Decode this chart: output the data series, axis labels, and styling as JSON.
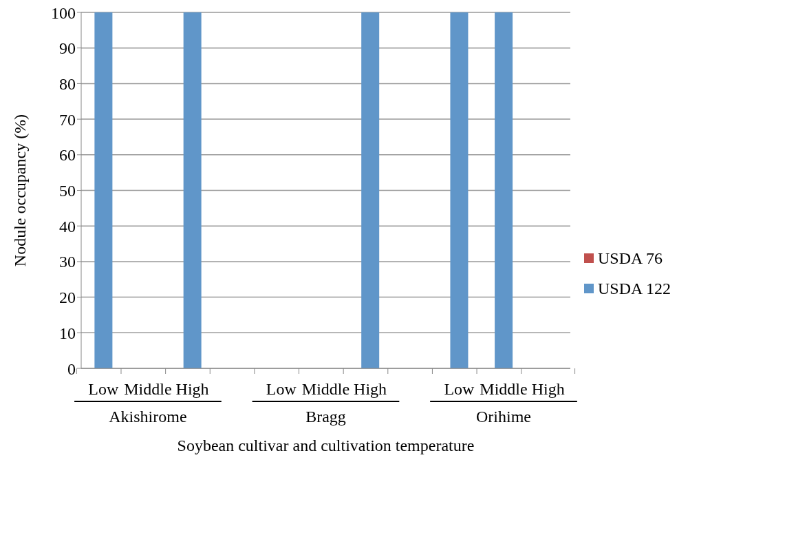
{
  "chart_data": {
    "type": "bar",
    "stacked": true,
    "xlabel": "Soybean cultivar and cultivation temperature",
    "ylabel": "Nodule occupancy (%)",
    "categories": [
      "Low",
      "Middle",
      "High",
      null,
      "Low",
      "Middle",
      "High",
      null,
      "Low",
      "Middle",
      "High"
    ],
    "annotations": [
      "Akishirome",
      "Bragg",
      "Orihime"
    ],
    "series": [
      {
        "name": "USDA 76",
        "color": "#c0504d",
        "values": [
          0,
          0,
          0,
          null,
          0,
          0,
          0,
          null,
          0,
          0,
          0
        ]
      },
      {
        "name": "USDA 122",
        "color": "#6096c9",
        "values": [
          100,
          0,
          100,
          null,
          0,
          0,
          100,
          null,
          100,
          100,
          0
        ]
      }
    ],
    "ylim": [
      0,
      100
    ],
    "yticks": [
      0,
      10,
      20,
      30,
      40,
      50,
      60,
      70,
      80,
      90,
      100
    ],
    "grid": "y",
    "legend": "right"
  }
}
